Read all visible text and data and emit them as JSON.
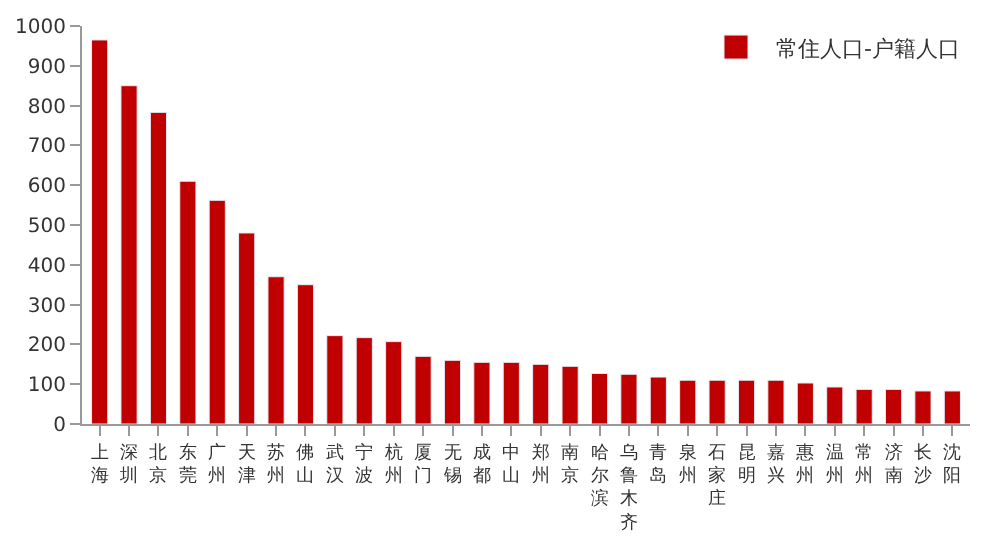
{
  "chart_data": {
    "type": "bar",
    "categories": [
      "上海",
      "深圳",
      "北京",
      "东莞",
      "广州",
      "天津",
      "苏州",
      "佛山",
      "武汉",
      "宁波",
      "杭州",
      "厦门",
      "无锡",
      "成都",
      "中山",
      "郑州",
      "南京",
      "哈尔滨",
      "乌鲁木齐",
      "青岛",
      "泉州",
      "石家庄",
      "昆明",
      "嘉兴",
      "惠州",
      "温州",
      "常州",
      "济南",
      "长沙",
      "沈阳"
    ],
    "series": [
      {
        "name": "常住人口-户籍人口",
        "color": "#c00000",
        "values": [
          965,
          850,
          783,
          610,
          562,
          480,
          370,
          350,
          222,
          217,
          207,
          170,
          160,
          155,
          155,
          150,
          145,
          127,
          125,
          118,
          110,
          110,
          110,
          110,
          103,
          93,
          87,
          87,
          83,
          83
        ]
      }
    ],
    "ylim": [
      0,
      1000
    ],
    "yticks": [
      0,
      100,
      200,
      300,
      400,
      500,
      600,
      700,
      800,
      900,
      1000
    ],
    "grid": false,
    "legend": "top right"
  }
}
